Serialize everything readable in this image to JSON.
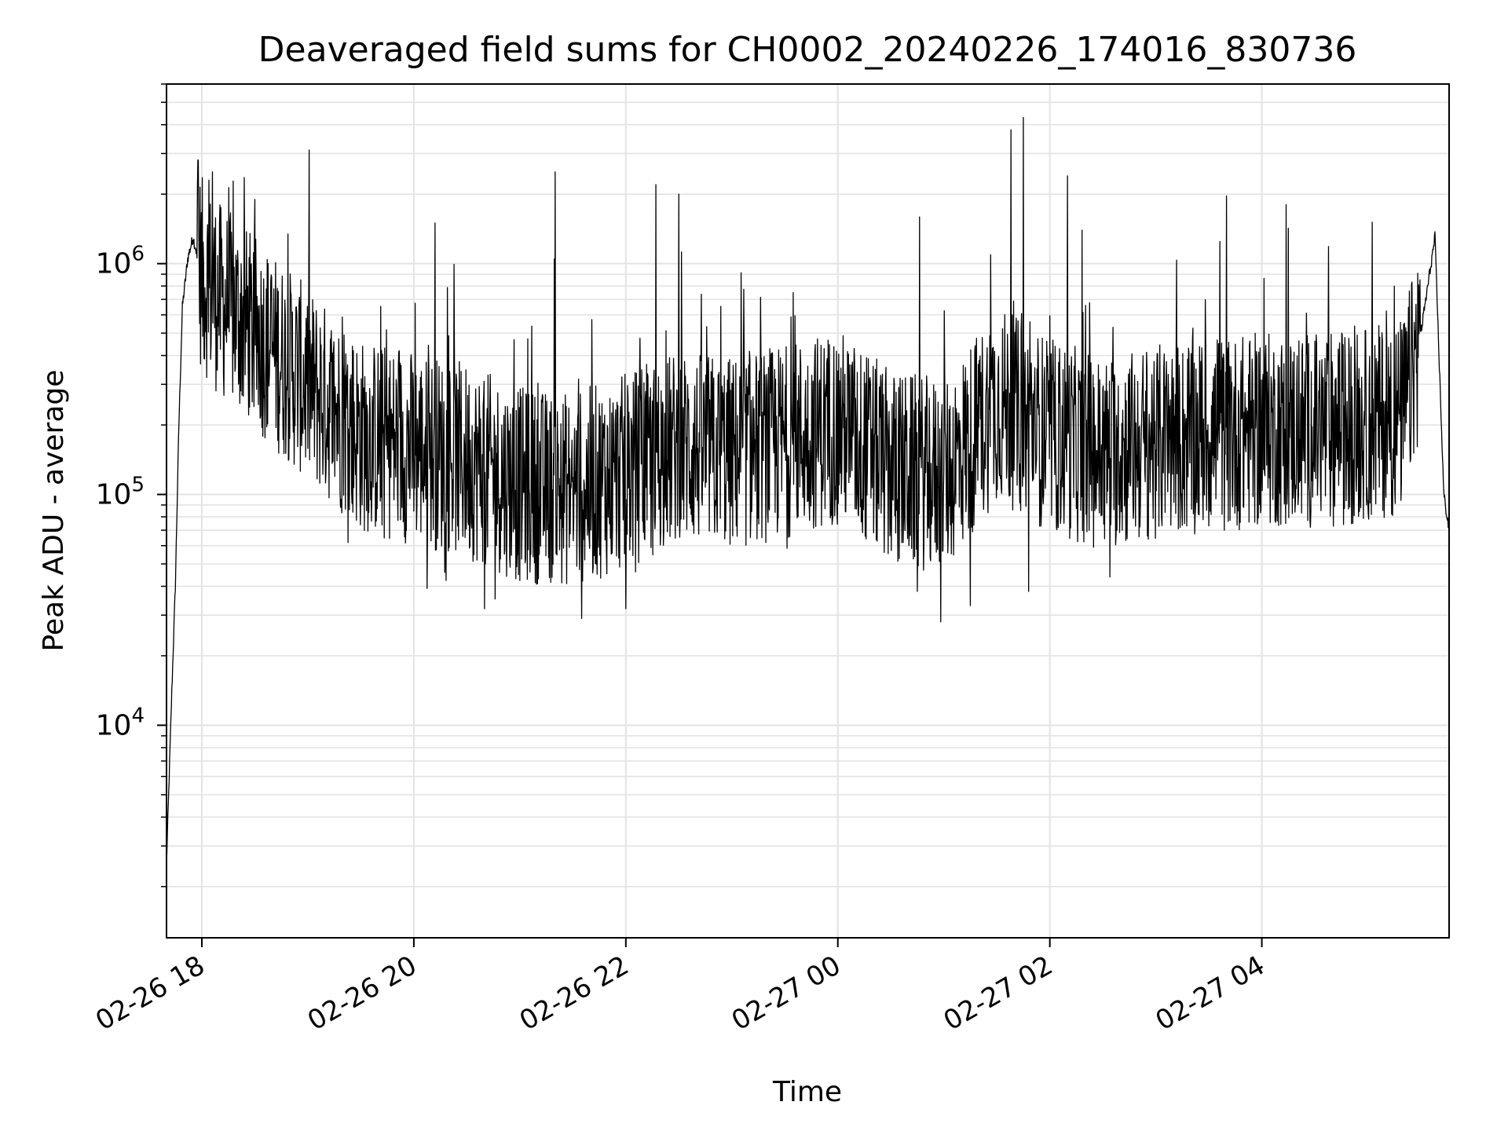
{
  "chart_data": {
    "type": "line",
    "title": "Deaveraged field sums for CH0002_20240226_174016_830736",
    "xlabel": "Time",
    "ylabel": "Peak ADU - average",
    "yscale": "log",
    "ylim": [
      1200,
      6000000
    ],
    "xlim": [
      "2024-02-26 17:40",
      "2024-02-27 05:46"
    ],
    "grid": true,
    "line_color": "#000000",
    "grid_color": "#e3e3e3",
    "x_ticks": [
      {
        "value": "2024-02-26 18:00",
        "label": "02-26 18"
      },
      {
        "value": "2024-02-26 20:00",
        "label": "02-26 20"
      },
      {
        "value": "2024-02-26 22:00",
        "label": "02-26 22"
      },
      {
        "value": "2024-02-27 00:00",
        "label": "02-27 00"
      },
      {
        "value": "2024-02-27 02:00",
        "label": "02-27 02"
      },
      {
        "value": "2024-02-27 04:00",
        "label": "02-27 04"
      }
    ],
    "y_ticks": [
      {
        "value": 10000,
        "base": "10",
        "exp": "4"
      },
      {
        "value": 100000,
        "base": "10",
        "exp": "5"
      },
      {
        "value": 1000000,
        "base": "10",
        "exp": "6"
      }
    ],
    "series": [
      {
        "points": [
          [
            "2024-02-26 17:40",
            2500
          ],
          [
            "2024-02-26 17:43",
            14000
          ],
          [
            "2024-02-26 17:45",
            40000
          ],
          [
            "2024-02-26 17:47",
            200000
          ],
          [
            "2024-02-26 17:49",
            650000
          ],
          [
            "2024-02-26 17:52",
            1050000
          ],
          [
            "2024-02-26 17:55",
            1300000
          ],
          [
            "2024-02-26 18:00",
            900000
          ],
          [
            "2024-02-26 18:10",
            700000
          ],
          [
            "2024-02-26 18:20",
            600000
          ],
          [
            "2024-02-26 18:40",
            420000
          ],
          [
            "2024-02-26 19:00",
            300000
          ],
          [
            "2024-02-26 19:30",
            180000
          ],
          [
            "2024-02-26 20:00",
            160000
          ],
          [
            "2024-02-26 20:30",
            140000
          ],
          [
            "2024-02-26 21:00",
            110000
          ],
          [
            "2024-02-26 21:30",
            105000
          ],
          [
            "2024-02-26 22:00",
            125000
          ],
          [
            "2024-02-26 22:30",
            160000
          ],
          [
            "2024-02-26 23:00",
            150000
          ],
          [
            "2024-02-26 23:30",
            170000
          ],
          [
            "2024-02-27 00:00",
            200000
          ],
          [
            "2024-02-27 00:30",
            130000
          ],
          [
            "2024-02-27 01:00",
            120000
          ],
          [
            "2024-02-27 01:30",
            250000
          ],
          [
            "2024-02-27 02:00",
            180000
          ],
          [
            "2024-02-27 02:30",
            150000
          ],
          [
            "2024-02-27 03:00",
            170000
          ],
          [
            "2024-02-27 03:30",
            180000
          ],
          [
            "2024-02-27 04:00",
            190000
          ],
          [
            "2024-02-27 04:30",
            190000
          ],
          [
            "2024-02-27 05:00",
            200000
          ],
          [
            "2024-02-27 05:20",
            220000
          ],
          [
            "2024-02-27 05:30",
            500000
          ],
          [
            "2024-02-27 05:38",
            1300000
          ],
          [
            "2024-02-27 05:43",
            100000
          ],
          [
            "2024-02-27 05:46",
            70000
          ]
        ],
        "spikes": [
          [
            "2024-02-26 17:58",
            2800000
          ],
          [
            "2024-02-26 18:04",
            2300000
          ],
          [
            "2024-02-26 18:06",
            2500000
          ],
          [
            "2024-02-26 20:12",
            1500000
          ],
          [
            "2024-02-26 21:20",
            2500000
          ],
          [
            "2024-02-26 22:17",
            2200000
          ],
          [
            "2024-02-26 22:30",
            2000000
          ],
          [
            "2024-02-27 01:38",
            3800000
          ],
          [
            "2024-02-27 01:45",
            4300000
          ],
          [
            "2024-02-27 02:10",
            2400000
          ]
        ],
        "dips": [
          [
            "2024-02-26 20:40",
            32000
          ],
          [
            "2024-02-26 21:35",
            29000
          ],
          [
            "2024-02-26 22:00",
            32000
          ],
          [
            "2024-02-27 00:45",
            38000
          ],
          [
            "2024-02-27 01:15",
            33000
          ],
          [
            "2024-02-27 01:48",
            38000
          ]
        ]
      }
    ]
  }
}
